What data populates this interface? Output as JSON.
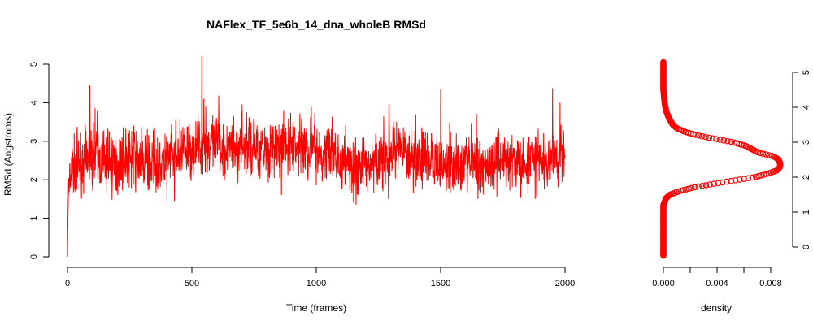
{
  "chart_data": [
    {
      "type": "line",
      "title": "NAFlex_TF_5e6b_14_dna_wholeB RMSd",
      "xlabel": "Time (frames)",
      "ylabel": "RMSd (Angstroms)",
      "xlim": [
        0,
        2000
      ],
      "ylim": [
        0,
        5.3
      ],
      "x_ticks": [
        "0",
        "500",
        "1000",
        "1500",
        "2000"
      ],
      "y_ticks": [
        "0",
        "1",
        "2",
        "3",
        "4",
        "5"
      ],
      "color": "#ff0000",
      "series": [
        {
          "frames": 2000,
          "anchors": [
            [
              0,
              0.0
            ],
            [
              3,
              1.6
            ],
            [
              20,
              2.3
            ],
            [
              60,
              2.5
            ],
            [
              100,
              2.6
            ],
            [
              150,
              2.5
            ],
            [
              200,
              2.4
            ],
            [
              250,
              2.6
            ],
            [
              300,
              2.5
            ],
            [
              350,
              2.4
            ],
            [
              400,
              2.5
            ],
            [
              450,
              2.6
            ],
            [
              500,
              2.8
            ],
            [
              540,
              2.9
            ],
            [
              600,
              2.9
            ],
            [
              650,
              2.8
            ],
            [
              700,
              2.9
            ],
            [
              750,
              2.8
            ],
            [
              800,
              2.8
            ],
            [
              850,
              2.8
            ],
            [
              900,
              2.9
            ],
            [
              950,
              2.8
            ],
            [
              1000,
              2.8
            ],
            [
              1050,
              2.7
            ],
            [
              1100,
              2.5
            ],
            [
              1150,
              2.3
            ],
            [
              1200,
              2.4
            ],
            [
              1250,
              2.5
            ],
            [
              1300,
              2.6
            ],
            [
              1350,
              2.7
            ],
            [
              1400,
              2.6
            ],
            [
              1450,
              2.5
            ],
            [
              1500,
              2.4
            ],
            [
              1550,
              2.4
            ],
            [
              1600,
              2.5
            ],
            [
              1650,
              2.4
            ],
            [
              1700,
              2.4
            ],
            [
              1750,
              2.5
            ],
            [
              1800,
              2.4
            ],
            [
              1850,
              2.4
            ],
            [
              1900,
              2.5
            ],
            [
              1950,
              2.5
            ],
            [
              2000,
              2.7
            ]
          ],
          "peaks": [
            [
              90,
              4.45
            ],
            [
              540,
              5.22
            ],
            [
              548,
              4.1
            ],
            [
              556,
              3.9
            ],
            [
              1500,
              4.35
            ],
            [
              1950,
              4.38
            ],
            [
              1150,
              1.4
            ],
            [
              1160,
              1.35
            ],
            [
              400,
              1.4
            ],
            [
              430,
              1.45
            ],
            [
              860,
              1.6
            ],
            [
              1290,
              1.5
            ],
            [
              1650,
              1.5
            ],
            [
              1880,
              1.5
            ],
            [
              120,
              3.8
            ],
            [
              700,
              3.8
            ],
            [
              980,
              3.9
            ],
            [
              1400,
              3.7
            ],
            [
              1980,
              4.0
            ]
          ]
        }
      ]
    },
    {
      "type": "line",
      "xlabel": "density",
      "ylabel": "",
      "xlim": [
        0,
        0.0088
      ],
      "ylim": [
        0,
        5.3
      ],
      "x_ticks": [
        "0.000",
        "0.004",
        "0.008"
      ],
      "y_ticks": [
        "0",
        "1",
        "2",
        "3",
        "4",
        "5"
      ],
      "color": "#ff0000",
      "curve": [
        [
          -0.25,
          0.0
        ],
        [
          1.2,
          0.0
        ],
        [
          1.4,
          0.0002
        ],
        [
          1.5,
          0.0005
        ],
        [
          1.6,
          0.0012
        ],
        [
          1.7,
          0.0022
        ],
        [
          1.8,
          0.0036
        ],
        [
          1.9,
          0.0052
        ],
        [
          2.0,
          0.0068
        ],
        [
          2.1,
          0.0078
        ],
        [
          2.2,
          0.0085
        ],
        [
          2.3,
          0.0087
        ],
        [
          2.4,
          0.0087
        ],
        [
          2.5,
          0.0086
        ],
        [
          2.6,
          0.0082
        ],
        [
          2.7,
          0.0071
        ],
        [
          2.8,
          0.0066
        ],
        [
          2.9,
          0.0061
        ],
        [
          3.0,
          0.0052
        ],
        [
          3.1,
          0.0038
        ],
        [
          3.2,
          0.0025
        ],
        [
          3.3,
          0.0016
        ],
        [
          3.4,
          0.001
        ],
        [
          3.5,
          0.0007
        ],
        [
          3.7,
          0.0004
        ],
        [
          3.9,
          0.0002
        ],
        [
          4.1,
          0.0001
        ],
        [
          4.3,
          5e-05
        ],
        [
          4.5,
          0.0
        ],
        [
          5.3,
          0.0
        ]
      ]
    }
  ]
}
